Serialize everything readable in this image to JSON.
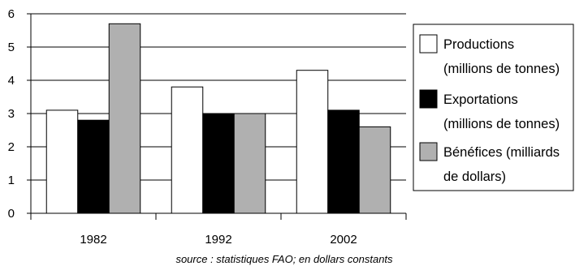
{
  "chart_data": {
    "type": "bar",
    "categories": [
      "1982",
      "1992",
      "2002"
    ],
    "series": [
      {
        "name": "Productions (millions de tonnes)",
        "name_lines": [
          "Productions",
          "(millions de tonnes)"
        ],
        "values": [
          3.1,
          3.8,
          4.3
        ],
        "color": "#ffffff"
      },
      {
        "name": "Exportations (millions de tonnes)",
        "name_lines": [
          "Exportations",
          "(millions de tonnes)"
        ],
        "values": [
          2.8,
          3.0,
          3.1
        ],
        "color": "#000000"
      },
      {
        "name": "Bénéfices (milliards de dollars)",
        "name_lines": [
          "Bénéfices (milliards",
          "de dollars)"
        ],
        "values": [
          5.7,
          3.0,
          2.6
        ],
        "color": "#b0b0b0"
      }
    ],
    "yticks": [
      0,
      1,
      2,
      3,
      4,
      5,
      6
    ],
    "ylim": [
      0,
      6
    ],
    "grid": true,
    "legend_position": "right",
    "title": "",
    "xlabel": "",
    "ylabel": "",
    "source": "source : statistiques FAO; en dollars constants"
  }
}
